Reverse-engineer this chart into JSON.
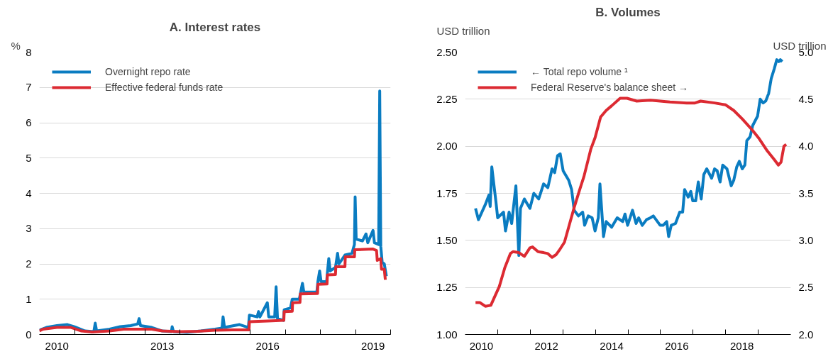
{
  "chart_data": [
    {
      "type": "line",
      "title": "A. Interest rates",
      "ylabel": "%",
      "xlim": [
        2010,
        2020
      ],
      "ylim": [
        0,
        8
      ],
      "yticks": [
        0,
        1,
        2,
        3,
        4,
        5,
        6,
        7,
        8
      ],
      "xticks": [
        {
          "value": 2010.5,
          "label": "2010"
        },
        {
          "value": 2013.5,
          "label": "2013"
        },
        {
          "value": 2016.5,
          "label": "2016"
        },
        {
          "value": 2019.5,
          "label": "2019"
        },
        {
          "value": 2011,
          "label": null
        },
        {
          "value": 2012,
          "label": null
        },
        {
          "value": 2013,
          "label": null
        },
        {
          "value": 2014,
          "label": null
        },
        {
          "value": 2015,
          "label": null
        },
        {
          "value": 2016,
          "label": null
        },
        {
          "value": 2017,
          "label": null
        },
        {
          "value": 2018,
          "label": null
        },
        {
          "value": 2019,
          "label": null
        },
        {
          "value": 2020,
          "label": null
        }
      ],
      "grid": "y",
      "legend": "top left",
      "series": [
        {
          "name": "Overnight repo rate",
          "color": "#0a7cc1",
          "x": [
            2010.0,
            2010.2,
            2010.5,
            2010.8,
            2011.0,
            2011.3,
            2011.55,
            2011.59,
            2011.63,
            2012.0,
            2012.3,
            2012.6,
            2012.8,
            2012.84,
            2012.88,
            2013.2,
            2013.5,
            2013.76,
            2013.78,
            2013.82,
            2014.2,
            2014.6,
            2015.0,
            2015.2,
            2015.23,
            2015.27,
            2015.7,
            2015.95,
            2015.98,
            2016.2,
            2016.24,
            2016.28,
            2016.49,
            2016.53,
            2016.7,
            2016.74,
            2016.78,
            2016.95,
            2016.97,
            2017.15,
            2017.2,
            2017.4,
            2017.43,
            2017.49,
            2017.53,
            2017.9,
            2017.93,
            2017.98,
            2018.02,
            2018.18,
            2018.2,
            2018.24,
            2018.28,
            2018.43,
            2018.49,
            2018.53,
            2018.7,
            2018.9,
            2018.97,
            2018.99,
            2019.02,
            2019.2,
            2019.3,
            2019.35,
            2019.5,
            2019.54,
            2019.66,
            2019.69,
            2019.72,
            2019.76,
            2019.82,
            2019.88
          ],
          "values": [
            0.12,
            0.2,
            0.25,
            0.28,
            0.22,
            0.1,
            0.08,
            0.32,
            0.1,
            0.15,
            0.22,
            0.25,
            0.3,
            0.45,
            0.25,
            0.2,
            0.1,
            0.08,
            0.22,
            0.08,
            0.06,
            0.1,
            0.15,
            0.18,
            0.5,
            0.2,
            0.28,
            0.2,
            0.55,
            0.5,
            0.65,
            0.5,
            0.9,
            0.5,
            0.5,
            1.35,
            0.45,
            0.4,
            0.7,
            0.75,
            1.0,
            1.0,
            1.15,
            1.45,
            1.2,
            1.2,
            1.5,
            1.8,
            1.5,
            1.5,
            1.75,
            2.15,
            1.8,
            1.9,
            2.3,
            2.0,
            2.25,
            2.3,
            2.55,
            3.9,
            2.7,
            2.65,
            2.85,
            2.6,
            2.95,
            2.6,
            2.55,
            6.9,
            2.5,
            2.05,
            2.0,
            1.65
          ]
        },
        {
          "name": "Effective federal funds rate",
          "color": "#dc2a32",
          "x": [
            2010.0,
            2010.1,
            2010.5,
            2010.9,
            2011.2,
            2011.5,
            2012.0,
            2012.4,
            2012.8,
            2013.2,
            2013.5,
            2014.0,
            2014.5,
            2015.0,
            2015.5,
            2015.97,
            2015.98,
            2016.5,
            2016.96,
            2016.97,
            2017.2,
            2017.21,
            2017.42,
            2017.43,
            2017.92,
            2017.93,
            2018.19,
            2018.2,
            2018.43,
            2018.44,
            2018.7,
            2018.71,
            2018.97,
            2018.98,
            2019.5,
            2019.6,
            2019.62,
            2019.72,
            2019.74,
            2019.82,
            2019.85
          ],
          "values": [
            0.1,
            0.15,
            0.2,
            0.2,
            0.1,
            0.07,
            0.1,
            0.15,
            0.15,
            0.15,
            0.1,
            0.08,
            0.09,
            0.12,
            0.13,
            0.13,
            0.36,
            0.38,
            0.4,
            0.65,
            0.66,
            0.9,
            0.91,
            1.15,
            1.16,
            1.42,
            1.43,
            1.69,
            1.7,
            1.92,
            1.92,
            2.2,
            2.2,
            2.4,
            2.42,
            2.38,
            2.1,
            2.15,
            1.85,
            1.85,
            1.55
          ]
        }
      ]
    },
    {
      "type": "line",
      "title": "B. Volumes",
      "ylabel": "USD trillion",
      "y2label": "USD trillion",
      "xlim": [
        2010,
        2020
      ],
      "ylim": [
        1.0,
        2.5
      ],
      "yticks": [
        {
          "value": 1.0,
          "label": "1.00"
        },
        {
          "value": 1.25,
          "label": "1.25"
        },
        {
          "value": 1.5,
          "label": "1.50"
        },
        {
          "value": 1.75,
          "label": "1.75"
        },
        {
          "value": 2.0,
          "label": "2.00"
        },
        {
          "value": 2.25,
          "label": "2.25"
        },
        {
          "value": 2.5,
          "label": "2.50"
        }
      ],
      "y2lim": [
        2.0,
        5.0
      ],
      "y2ticks": [
        {
          "value": 2,
          "label": "2.0"
        },
        {
          "value": 2.5,
          "label": "2.5"
        },
        {
          "value": 3,
          "label": "3.0"
        },
        {
          "value": 3.5,
          "label": "3.5"
        },
        {
          "value": 4,
          "label": "4.0"
        },
        {
          "value": 4.5,
          "label": "4.5"
        },
        {
          "value": 5,
          "label": "5.0"
        }
      ],
      "xticks": [
        {
          "value": 2010.5,
          "label": "2010"
        },
        {
          "value": 2012.5,
          "label": "2012"
        },
        {
          "value": 2014.5,
          "label": "2014"
        },
        {
          "value": 2016.5,
          "label": "2016"
        },
        {
          "value": 2018.5,
          "label": "2018"
        },
        {
          "value": 2011,
          "label": null
        },
        {
          "value": 2012,
          "label": null
        },
        {
          "value": 2013,
          "label": null
        },
        {
          "value": 2014,
          "label": null
        },
        {
          "value": 2015,
          "label": null
        },
        {
          "value": 2016,
          "label": null
        },
        {
          "value": 2017,
          "label": null
        },
        {
          "value": 2018,
          "label": null
        },
        {
          "value": 2019,
          "label": null
        }
      ],
      "grid": "y",
      "legend": "top left",
      "series": [
        {
          "name": "← Total repo volume ¹",
          "color": "#0a7cc1",
          "x": [
            2010.32,
            2010.41,
            2010.62,
            2010.73,
            2010.77,
            2010.82,
            2010.95,
            2011.0,
            2011.18,
            2011.24,
            2011.35,
            2011.43,
            2011.56,
            2011.65,
            2011.7,
            2011.82,
            2011.99,
            2012.11,
            2012.26,
            2012.41,
            2012.54,
            2012.67,
            2012.75,
            2012.84,
            2012.92,
            2013.01,
            2013.18,
            2013.27,
            2013.35,
            2013.48,
            2013.61,
            2013.67,
            2013.78,
            2013.9,
            2013.99,
            2014.09,
            2014.14,
            2014.25,
            2014.33,
            2014.5,
            2014.67,
            2014.84,
            2014.91,
            2014.99,
            2015.14,
            2015.25,
            2015.33,
            2015.44,
            2015.57,
            2015.69,
            2015.78,
            2015.99,
            2016.08,
            2016.19,
            2016.25,
            2016.33,
            2016.46,
            2016.59,
            2016.68,
            2016.74,
            2016.85,
            2016.93,
            2016.99,
            2017.08,
            2017.16,
            2017.25,
            2017.33,
            2017.42,
            2017.57,
            2017.66,
            2017.74,
            2017.83,
            2017.91,
            2018.04,
            2018.17,
            2018.25,
            2018.34,
            2018.42,
            2018.51,
            2018.59,
            2018.65,
            2018.75,
            2018.83,
            2018.98,
            2019.06,
            2019.15,
            2019.23,
            2019.32,
            2019.4,
            2019.49,
            2019.57,
            2019.63,
            2019.68,
            2019.74
          ],
          "values": [
            1.67,
            1.61,
            1.69,
            1.74,
            1.68,
            1.89,
            1.7,
            1.62,
            1.65,
            1.55,
            1.65,
            1.59,
            1.79,
            1.42,
            1.67,
            1.72,
            1.67,
            1.75,
            1.72,
            1.8,
            1.78,
            1.88,
            1.86,
            1.95,
            1.96,
            1.87,
            1.82,
            1.77,
            1.66,
            1.63,
            1.65,
            1.58,
            1.63,
            1.62,
            1.55,
            1.62,
            1.8,
            1.52,
            1.6,
            1.57,
            1.62,
            1.6,
            1.64,
            1.58,
            1.66,
            1.59,
            1.62,
            1.58,
            1.61,
            1.62,
            1.63,
            1.58,
            1.58,
            1.6,
            1.52,
            1.58,
            1.59,
            1.65,
            1.65,
            1.77,
            1.73,
            1.76,
            1.71,
            1.71,
            1.81,
            1.72,
            1.85,
            1.88,
            1.83,
            1.88,
            1.87,
            1.81,
            1.9,
            1.88,
            1.79,
            1.82,
            1.89,
            1.92,
            1.88,
            1.9,
            2.03,
            2.05,
            2.11,
            2.16,
            2.25,
            2.23,
            2.24,
            2.28,
            2.36,
            2.41,
            2.46,
            2.45,
            2.46,
            2.45
          ]
        },
        {
          "name": "Federal Reserve's balance sheet →",
          "color": "#dc2a32",
          "axis": "y2",
          "x": [
            2010.32,
            2010.45,
            2010.62,
            2010.79,
            2010.88,
            2011.05,
            2011.22,
            2011.39,
            2011.47,
            2011.65,
            2011.82,
            2011.99,
            2012.07,
            2012.24,
            2012.41,
            2012.54,
            2012.67,
            2012.8,
            2012.92,
            2013.05,
            2013.18,
            2013.35,
            2013.52,
            2013.65,
            2013.86,
            2013.99,
            2014.16,
            2014.33,
            2014.5,
            2014.76,
            2014.97,
            2015.27,
            2015.69,
            2016.29,
            2016.8,
            2017.06,
            2017.23,
            2017.66,
            2018.0,
            2018.25,
            2018.51,
            2018.8,
            2019.03,
            2019.28,
            2019.49,
            2019.62,
            2019.7,
            2019.79,
            2019.86
          ],
          "values": [
            2.34,
            2.34,
            2.3,
            2.31,
            2.38,
            2.51,
            2.71,
            2.86,
            2.88,
            2.87,
            2.83,
            2.92,
            2.93,
            2.88,
            2.87,
            2.86,
            2.82,
            2.85,
            2.91,
            2.98,
            3.14,
            3.35,
            3.54,
            3.68,
            3.97,
            4.09,
            4.31,
            4.38,
            4.43,
            4.51,
            4.51,
            4.48,
            4.49,
            4.47,
            4.46,
            4.46,
            4.48,
            4.46,
            4.44,
            4.38,
            4.29,
            4.18,
            4.08,
            3.95,
            3.86,
            3.8,
            3.83,
            4.0,
            4.02
          ]
        }
      ]
    }
  ]
}
